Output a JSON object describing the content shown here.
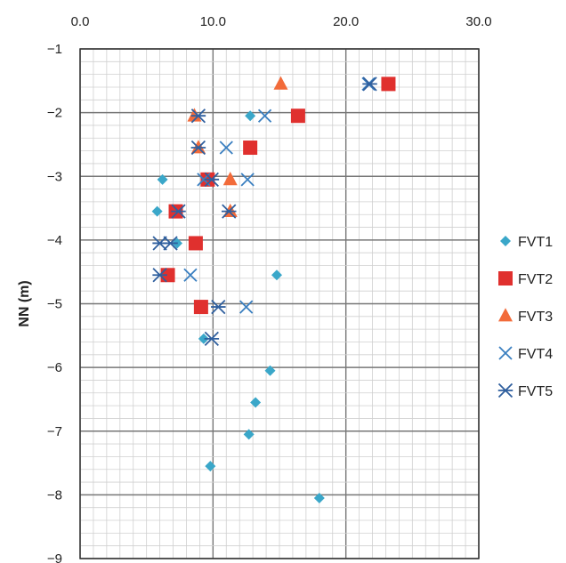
{
  "chart_data": {
    "type": "scatter",
    "ylabel": "NN (m)",
    "xlim": [
      0,
      30
    ],
    "ylim": [
      -9,
      -1
    ],
    "x_ticks": [
      "0.0",
      "10.0",
      "20.0",
      "30.0"
    ],
    "y_ticks": [
      "-1",
      "-2",
      "-3",
      "-4",
      "-5",
      "-6",
      "-7",
      "-8",
      "-9"
    ],
    "x_axis_position": "top",
    "grid": true,
    "legend_position": "right",
    "series": [
      {
        "name": "FVT1",
        "marker": "diamond",
        "color": "#3aa7c9",
        "points": [
          {
            "x": 12.8,
            "y": -2.05
          },
          {
            "x": 6.2,
            "y": -3.05
          },
          {
            "x": 5.8,
            "y": -3.55
          },
          {
            "x": 7.3,
            "y": -4.05
          },
          {
            "x": 14.8,
            "y": -4.55
          },
          {
            "x": 9.3,
            "y": -5.55
          },
          {
            "x": 14.3,
            "y": -6.05
          },
          {
            "x": 13.2,
            "y": -6.55
          },
          {
            "x": 12.7,
            "y": -7.05
          },
          {
            "x": 9.8,
            "y": -7.55
          },
          {
            "x": 18.0,
            "y": -8.05
          }
        ]
      },
      {
        "name": "FVT2",
        "marker": "square",
        "color": "#e0302e",
        "points": [
          {
            "x": 23.2,
            "y": -1.55
          },
          {
            "x": 16.4,
            "y": -2.05
          },
          {
            "x": 12.8,
            "y": -2.55
          },
          {
            "x": 9.6,
            "y": -3.05
          },
          {
            "x": 7.2,
            "y": -3.55
          },
          {
            "x": 8.7,
            "y": -4.05
          },
          {
            "x": 6.6,
            "y": -4.55
          },
          {
            "x": 9.1,
            "y": -5.05
          }
        ]
      },
      {
        "name": "FVT3",
        "marker": "triangle",
        "color": "#f26b3a",
        "points": [
          {
            "x": 15.1,
            "y": -1.55
          },
          {
            "x": 8.6,
            "y": -2.05
          },
          {
            "x": 8.9,
            "y": -2.55
          },
          {
            "x": 11.3,
            "y": -3.05
          },
          {
            "x": 11.3,
            "y": -3.55
          }
        ]
      },
      {
        "name": "FVT4",
        "marker": "x",
        "color": "#3a7fc0",
        "points": [
          {
            "x": 21.7,
            "y": -1.55
          },
          {
            "x": 13.9,
            "y": -2.05
          },
          {
            "x": 11.0,
            "y": -2.55
          },
          {
            "x": 12.6,
            "y": -3.05
          },
          {
            "x": 9.3,
            "y": -3.05
          },
          {
            "x": 8.3,
            "y": -4.55
          },
          {
            "x": 12.5,
            "y": -5.05
          }
        ]
      },
      {
        "name": "FVT5",
        "marker": "asterisk",
        "color": "#2f5f9e",
        "points": [
          {
            "x": 21.8,
            "y": -1.55
          },
          {
            "x": 8.9,
            "y": -2.05
          },
          {
            "x": 8.9,
            "y": -2.55
          },
          {
            "x": 9.9,
            "y": -3.05
          },
          {
            "x": 7.4,
            "y": -3.55
          },
          {
            "x": 11.2,
            "y": -3.55
          },
          {
            "x": 6.0,
            "y": -4.05
          },
          {
            "x": 6.8,
            "y": -4.05
          },
          {
            "x": 6.0,
            "y": -4.55
          },
          {
            "x": 10.4,
            "y": -5.05
          },
          {
            "x": 9.9,
            "y": -5.55
          }
        ]
      }
    ]
  }
}
